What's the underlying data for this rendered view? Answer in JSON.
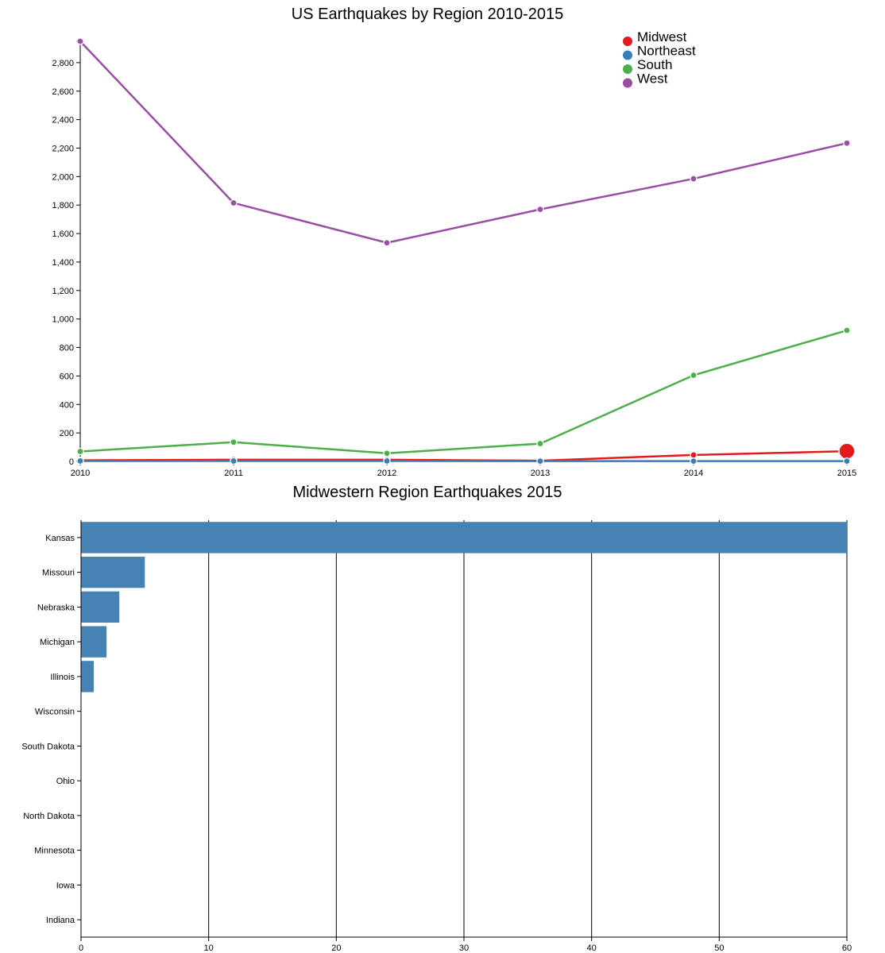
{
  "chart_data": [
    {
      "type": "line",
      "title": "US Earthquakes by Region 2010-2015",
      "xlabel": "",
      "ylabel": "",
      "x": [
        2010,
        2011,
        2012,
        2013,
        2014,
        2015
      ],
      "xticks": [
        "2010",
        "2011",
        "2012",
        "2013",
        "2014",
        "2015"
      ],
      "ylim": [
        0,
        2950
      ],
      "yticks": [
        "0",
        "200",
        "400",
        "600",
        "800",
        "1,000",
        "1,200",
        "1,400",
        "1,600",
        "1,800",
        "2,000",
        "2,200",
        "2,400",
        "2,600",
        "2,800"
      ],
      "yticks_values": [
        0,
        200,
        400,
        600,
        800,
        1000,
        1200,
        1400,
        1600,
        1800,
        2000,
        2200,
        2400,
        2600,
        2800
      ],
      "legend_position": "top-right",
      "grid": false,
      "highlighted_point": {
        "series": "Midwest",
        "x": 2015
      },
      "series": [
        {
          "name": "Midwest",
          "color": "#e41a1c",
          "values": [
            8,
            12,
            12,
            5,
            45,
            72
          ]
        },
        {
          "name": "Northeast",
          "color": "#377eb8",
          "values": [
            3,
            3,
            3,
            2,
            2,
            2
          ]
        },
        {
          "name": "South",
          "color": "#4daf4a",
          "values": [
            70,
            135,
            57,
            125,
            605,
            920
          ]
        },
        {
          "name": "West",
          "color": "#984ea3",
          "values": [
            2950,
            1815,
            1535,
            1770,
            1985,
            2235
          ]
        }
      ]
    },
    {
      "type": "bar",
      "orientation": "horizontal",
      "title": "Midwestern Region Earthquakes 2015",
      "xlabel": "",
      "ylabel": "",
      "xlim": [
        0,
        60
      ],
      "xticks": [
        "0",
        "10",
        "20",
        "30",
        "40",
        "50",
        "60"
      ],
      "xticks_values": [
        0,
        10,
        20,
        30,
        40,
        50,
        60
      ],
      "grid": true,
      "color": "#4682b4",
      "categories": [
        "Kansas",
        "Missouri",
        "Nebraska",
        "Michigan",
        "Illinois",
        "Wisconsin",
        "South Dakota",
        "Ohio",
        "North Dakota",
        "Minnesota",
        "Iowa",
        "Indiana"
      ],
      "values": [
        60,
        5,
        3,
        2,
        1,
        0,
        0,
        0,
        0,
        0,
        0,
        0
      ]
    }
  ]
}
